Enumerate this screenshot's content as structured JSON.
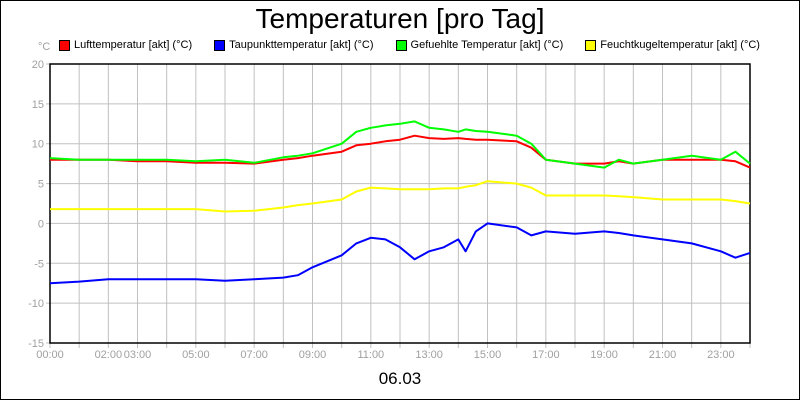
{
  "chart_data": {
    "type": "line",
    "title": "Temperaturen [pro Tag]",
    "ylabel": "°C",
    "xlabel": "06.03",
    "ylim": [
      -15,
      20
    ],
    "yticks": [
      20,
      15,
      10,
      5,
      0,
      -5,
      -10,
      -15
    ],
    "xlim": [
      "00:00",
      "24:00"
    ],
    "xtick_labels": [
      "00:00",
      "02:00",
      "03:00",
      "05:00",
      "07:00",
      "09:00",
      "11:00",
      "13:00",
      "15:00",
      "17:00",
      "19:00",
      "21:00",
      "23:00"
    ],
    "grid": true,
    "legend": "top",
    "x": [
      "00:00",
      "01:00",
      "02:00",
      "03:00",
      "04:00",
      "05:00",
      "06:00",
      "07:00",
      "08:00",
      "08:30",
      "09:00",
      "10:00",
      "10:30",
      "11:00",
      "11:30",
      "12:00",
      "12:30",
      "13:00",
      "13:30",
      "14:00",
      "14:15",
      "14:36",
      "15:00",
      "16:00",
      "16:30",
      "17:00",
      "18:00",
      "19:00",
      "19:30",
      "20:00",
      "21:00",
      "22:00",
      "23:00",
      "23:30",
      "24:00"
    ],
    "series": [
      {
        "name": "Lufttemperatur [akt] (°C)",
        "color": "#ff0000",
        "values": [
          8,
          8,
          8,
          7.8,
          7.8,
          7.6,
          7.6,
          7.5,
          8,
          8.2,
          8.5,
          9,
          9.8,
          10,
          10.3,
          10.5,
          11,
          10.7,
          10.6,
          10.7,
          10.6,
          10.5,
          10.5,
          10.3,
          9.5,
          8,
          7.5,
          7.5,
          7.8,
          7.5,
          8,
          8,
          8,
          7.8,
          7
        ]
      },
      {
        "name": "Taupunkttemperatur [akt] (°C)",
        "color": "#0000ff",
        "values": [
          -7.5,
          -7.3,
          -7,
          -7,
          -7,
          -7,
          -7.2,
          -7,
          -6.8,
          -6.5,
          -5.5,
          -4,
          -2.5,
          -1.8,
          -2,
          -3,
          -4.5,
          -3.5,
          -3,
          -2,
          -3.5,
          -1,
          0,
          -0.5,
          -1.5,
          -1,
          -1.3,
          -1,
          -1.2,
          -1.5,
          -2,
          -2.5,
          -3.5,
          -4.3,
          -3.7
        ]
      },
      {
        "name": "Gefuehlte Temperatur [akt] (°C)",
        "color": "#00ff00",
        "values": [
          8.2,
          8,
          8,
          8,
          8,
          7.8,
          8,
          7.6,
          8.3,
          8.5,
          8.8,
          10,
          11.5,
          12,
          12.3,
          12.5,
          12.8,
          12,
          11.8,
          11.5,
          11.8,
          11.6,
          11.5,
          11,
          10,
          8,
          7.5,
          7,
          8,
          7.5,
          8,
          8.5,
          8,
          9,
          7.5
        ]
      },
      {
        "name": "Feuchtkugeltemperatur [akt] (°C)",
        "color": "#ffff00",
        "values": [
          1.8,
          1.8,
          1.8,
          1.8,
          1.8,
          1.8,
          1.5,
          1.6,
          2,
          2.3,
          2.5,
          3,
          4,
          4.5,
          4.4,
          4.3,
          4.3,
          4.3,
          4.4,
          4.4,
          4.6,
          4.8,
          5.3,
          5,
          4.5,
          3.5,
          3.5,
          3.5,
          3.4,
          3.3,
          3,
          3,
          3,
          2.8,
          2.5
        ]
      }
    ]
  }
}
